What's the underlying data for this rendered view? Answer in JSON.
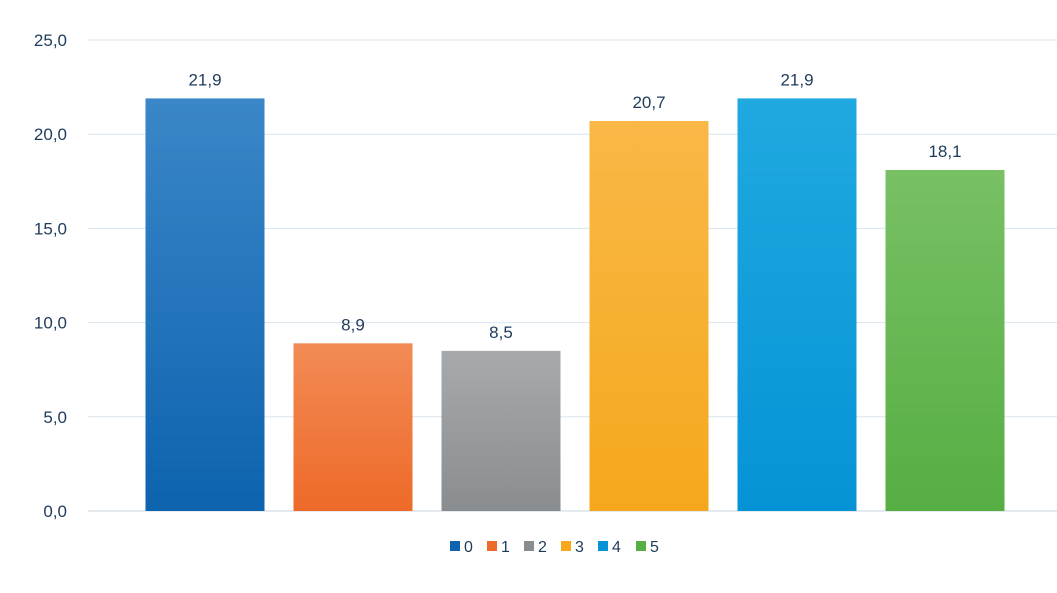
{
  "chart_data": {
    "type": "bar",
    "categories": [
      "0",
      "1",
      "2",
      "3",
      "4",
      "5"
    ],
    "values": [
      21.9,
      8.9,
      8.5,
      20.7,
      21.9,
      18.1
    ],
    "data_labels": [
      "21,9",
      "8,9",
      "8,5",
      "20,7",
      "21,9",
      "18,1"
    ],
    "colors": [
      {
        "top": "#3a86c8",
        "bottom": "#0d63ae"
      },
      {
        "top": "#f28b55",
        "bottom": "#ee6a29"
      },
      {
        "top": "#a7aaac",
        "bottom": "#8a8d90"
      },
      {
        "top": "#f9b847",
        "bottom": "#f5a81c"
      },
      {
        "top": "#20a9e0",
        "bottom": "#0693d6"
      },
      {
        "top": "#78c064",
        "bottom": "#56ae43"
      }
    ],
    "ylim": [
      0,
      25
    ],
    "yticks": [
      0,
      5,
      10,
      15,
      20,
      25
    ],
    "ytick_labels": [
      "0,0",
      "5,0",
      "10,0",
      "15,0",
      "20,0",
      "25,0"
    ],
    "title": "",
    "xlabel": "",
    "ylabel": "",
    "grid": true,
    "legend": {
      "position": "bottom",
      "entries": [
        "0",
        "1",
        "2",
        "3",
        "4",
        "5"
      ]
    }
  }
}
